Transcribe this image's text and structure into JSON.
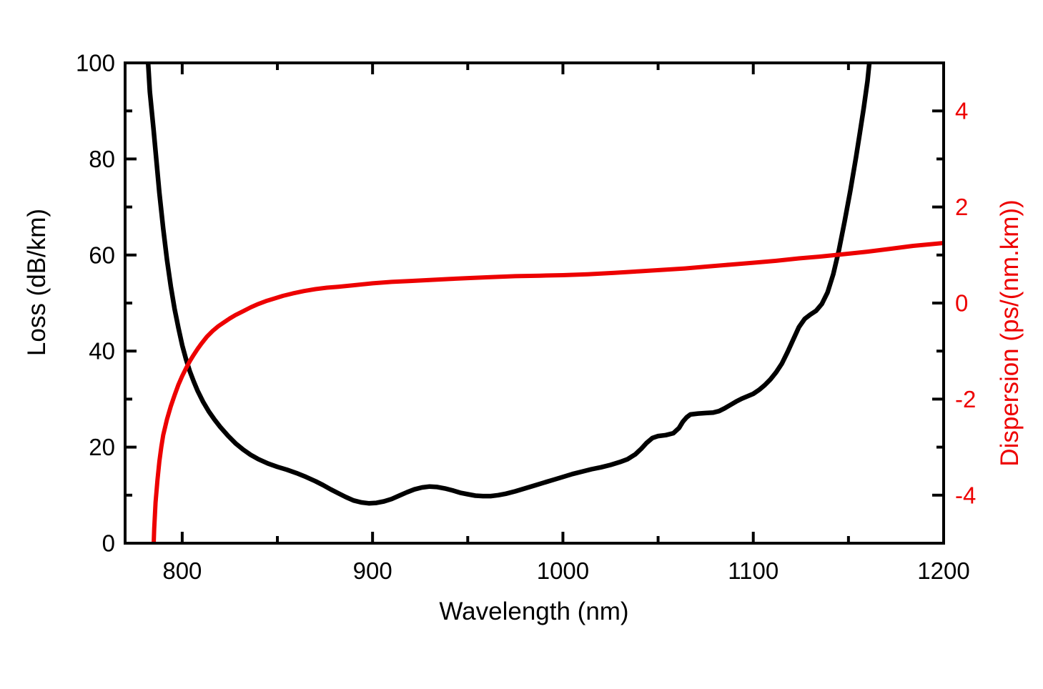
{
  "chart_data": {
    "type": "line",
    "title": "",
    "xlabel": "Wavelength (nm)",
    "ylabel_left": "Loss (dB/km)",
    "ylabel_right": "Dispersion (ps/(nm.km))",
    "xlim": [
      770,
      1200
    ],
    "ylim_left": [
      0,
      100
    ],
    "ylim_right": [
      -5,
      5
    ],
    "grid": false,
    "legend": "none",
    "tick_style": "inward, mirrored on top axis",
    "x_ticks_major": [
      800,
      900,
      1000,
      1100,
      1200
    ],
    "x_ticks_minor": [
      850,
      950,
      1050,
      1150
    ],
    "y_left_ticks_major": [
      0,
      20,
      40,
      60,
      80,
      100
    ],
    "y_left_ticks_minor": [
      10,
      30,
      50,
      70,
      90
    ],
    "y_right_ticks_major": [
      -4,
      -2,
      0,
      2,
      4
    ],
    "y_right_ticks_minor": [
      -3,
      -1,
      1,
      3
    ],
    "colors": {
      "loss_curve": "#000000",
      "dispersion_curve": "#ed0000",
      "left_axis_text": "#000000",
      "bottom_axis_text": "#000000",
      "right_axis_text": "#ed0000",
      "frame": "#000000",
      "background": "#ffffff"
    },
    "series": [
      {
        "name": "Loss",
        "axis": "left",
        "color": "#000000",
        "points": [
          [
            781.5,
            104
          ],
          [
            783,
            94
          ],
          [
            785,
            86
          ],
          [
            786.5,
            79.5
          ],
          [
            788,
            73
          ],
          [
            790,
            65.5
          ],
          [
            792,
            59
          ],
          [
            794,
            53.5
          ],
          [
            796,
            48.8
          ],
          [
            798,
            44.8
          ],
          [
            800,
            41.2
          ],
          [
            802,
            38.3
          ],
          [
            804,
            35.8
          ],
          [
            806,
            33.7
          ],
          [
            808,
            31.8
          ],
          [
            811,
            29.4
          ],
          [
            814,
            27.4
          ],
          [
            817,
            25.7
          ],
          [
            820,
            24.2
          ],
          [
            824,
            22.4
          ],
          [
            828,
            20.8
          ],
          [
            832,
            19.5
          ],
          [
            836,
            18.4
          ],
          [
            840,
            17.5
          ],
          [
            845,
            16.6
          ],
          [
            850,
            15.9
          ],
          [
            855,
            15.3
          ],
          [
            860,
            14.6
          ],
          [
            865,
            13.8
          ],
          [
            870,
            12.9
          ],
          [
            874,
            12.1
          ],
          [
            878,
            11.2
          ],
          [
            882,
            10.4
          ],
          [
            886,
            9.6
          ],
          [
            890,
            8.9
          ],
          [
            894,
            8.5
          ],
          [
            898,
            8.3
          ],
          [
            902,
            8.4
          ],
          [
            906,
            8.7
          ],
          [
            910,
            9.2
          ],
          [
            914,
            9.9
          ],
          [
            918,
            10.6
          ],
          [
            922,
            11.2
          ],
          [
            926,
            11.6
          ],
          [
            930,
            11.8
          ],
          [
            934,
            11.7
          ],
          [
            938,
            11.4
          ],
          [
            942,
            11.0
          ],
          [
            946,
            10.5
          ],
          [
            950,
            10.2
          ],
          [
            954,
            9.9
          ],
          [
            958,
            9.8
          ],
          [
            962,
            9.8
          ],
          [
            966,
            10.0
          ],
          [
            970,
            10.3
          ],
          [
            975,
            10.8
          ],
          [
            980,
            11.4
          ],
          [
            985,
            12.0
          ],
          [
            990,
            12.6
          ],
          [
            995,
            13.2
          ],
          [
            1000,
            13.8
          ],
          [
            1005,
            14.4
          ],
          [
            1010,
            14.9
          ],
          [
            1015,
            15.4
          ],
          [
            1020,
            15.8
          ],
          [
            1025,
            16.3
          ],
          [
            1030,
            16.9
          ],
          [
            1034,
            17.5
          ],
          [
            1038,
            18.5
          ],
          [
            1041,
            19.6
          ],
          [
            1044,
            20.9
          ],
          [
            1047,
            21.9
          ],
          [
            1050,
            22.3
          ],
          [
            1054,
            22.5
          ],
          [
            1058,
            22.9
          ],
          [
            1061,
            24.0
          ],
          [
            1063,
            25.3
          ],
          [
            1065,
            26.2
          ],
          [
            1067,
            26.8
          ],
          [
            1071,
            27.0
          ],
          [
            1075,
            27.1
          ],
          [
            1079,
            27.2
          ],
          [
            1082,
            27.5
          ],
          [
            1085,
            28.1
          ],
          [
            1088,
            28.8
          ],
          [
            1091,
            29.5
          ],
          [
            1094,
            30.1
          ],
          [
            1097,
            30.6
          ],
          [
            1100,
            31.1
          ],
          [
            1103,
            31.9
          ],
          [
            1106,
            32.9
          ],
          [
            1109,
            34.1
          ],
          [
            1112,
            35.6
          ],
          [
            1115,
            37.4
          ],
          [
            1118,
            39.8
          ],
          [
            1121,
            42.4
          ],
          [
            1124,
            45.0
          ],
          [
            1127,
            46.7
          ],
          [
            1130,
            47.6
          ],
          [
            1133,
            48.4
          ],
          [
            1136,
            49.8
          ],
          [
            1139,
            52.2
          ],
          [
            1142,
            56.0
          ],
          [
            1145,
            61.0
          ],
          [
            1148,
            67.0
          ],
          [
            1151,
            73.4
          ],
          [
            1154,
            80.4
          ],
          [
            1156,
            85.4
          ],
          [
            1158,
            90.6
          ],
          [
            1160,
            96.2
          ],
          [
            1162,
            104
          ]
        ]
      },
      {
        "name": "Dispersion",
        "axis": "right",
        "color": "#ed0000",
        "points": [
          [
            784.7,
            -5.4
          ],
          [
            785.3,
            -4.7
          ],
          [
            786,
            -4.15
          ],
          [
            787,
            -3.68
          ],
          [
            788,
            -3.3
          ],
          [
            789,
            -3.0
          ],
          [
            790,
            -2.75
          ],
          [
            792,
            -2.42
          ],
          [
            794,
            -2.15
          ],
          [
            796,
            -1.92
          ],
          [
            798,
            -1.7
          ],
          [
            800,
            -1.52
          ],
          [
            802,
            -1.36
          ],
          [
            804,
            -1.21
          ],
          [
            806,
            -1.08
          ],
          [
            808,
            -0.96
          ],
          [
            810,
            -0.85
          ],
          [
            813,
            -0.7
          ],
          [
            816,
            -0.58
          ],
          [
            819,
            -0.48
          ],
          [
            822,
            -0.4
          ],
          [
            825,
            -0.32
          ],
          [
            828,
            -0.25
          ],
          [
            832,
            -0.17
          ],
          [
            836,
            -0.09
          ],
          [
            840,
            -0.02
          ],
          [
            844,
            0.04
          ],
          [
            848,
            0.09
          ],
          [
            853,
            0.15
          ],
          [
            858,
            0.2
          ],
          [
            864,
            0.25
          ],
          [
            870,
            0.29
          ],
          [
            876,
            0.32
          ],
          [
            882,
            0.34
          ],
          [
            890,
            0.37
          ],
          [
            900,
            0.41
          ],
          [
            910,
            0.44
          ],
          [
            920,
            0.46
          ],
          [
            930,
            0.48
          ],
          [
            940,
            0.5
          ],
          [
            950,
            0.52
          ],
          [
            962,
            0.54
          ],
          [
            975,
            0.56
          ],
          [
            988,
            0.57
          ],
          [
            1000,
            0.58
          ],
          [
            1013,
            0.6
          ],
          [
            1027,
            0.63
          ],
          [
            1040,
            0.66
          ],
          [
            1052,
            0.69
          ],
          [
            1064,
            0.72
          ],
          [
            1076,
            0.76
          ],
          [
            1088,
            0.8
          ],
          [
            1100,
            0.84
          ],
          [
            1112,
            0.88
          ],
          [
            1124,
            0.93
          ],
          [
            1136,
            0.97
          ],
          [
            1148,
            1.02
          ],
          [
            1160,
            1.07
          ],
          [
            1172,
            1.13
          ],
          [
            1184,
            1.19
          ],
          [
            1192,
            1.22
          ],
          [
            1200,
            1.25
          ]
        ]
      }
    ]
  }
}
